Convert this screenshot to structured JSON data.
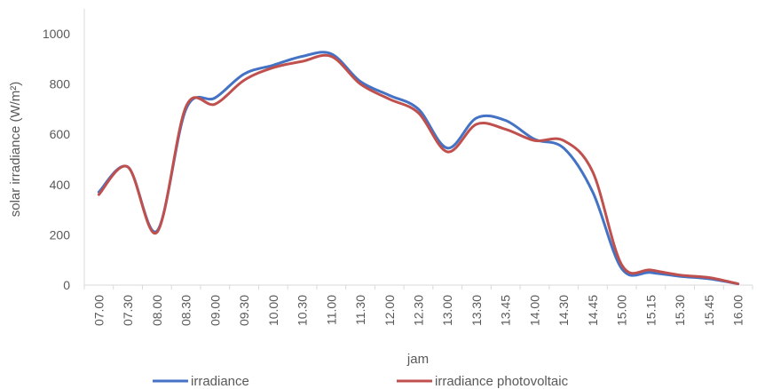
{
  "chart_data": {
    "type": "line",
    "title": "",
    "xlabel": "jam",
    "ylabel": "solar irradiance (W/m²)",
    "ylim": [
      0,
      1000
    ],
    "yticks": [
      0,
      200,
      400,
      600,
      800,
      1000
    ],
    "grid": false,
    "legend_position": "bottom",
    "categories": [
      "07.00",
      "07.30",
      "08.00",
      "08.30",
      "09.00",
      "09.30",
      "10.00",
      "10.30",
      "11.00",
      "11.30",
      "12.00",
      "12.30",
      "13.00",
      "13.30",
      "13.45",
      "14.00",
      "14.30",
      "14.45",
      "15.00",
      "15.15",
      "15.30",
      "15.45",
      "16.00"
    ],
    "series": [
      {
        "name": "irradiance",
        "color": "#4472C4",
        "values": [
          370,
          470,
          215,
          700,
          745,
          840,
          875,
          910,
          920,
          810,
          755,
          700,
          545,
          665,
          655,
          580,
          545,
          370,
          65,
          50,
          35,
          25,
          5
        ]
      },
      {
        "name": "irradiance photovoltaic",
        "color": "#C0504D",
        "values": [
          360,
          470,
          210,
          710,
          720,
          815,
          865,
          890,
          910,
          800,
          740,
          685,
          530,
          640,
          620,
          575,
          575,
          450,
          80,
          60,
          40,
          30,
          5
        ]
      }
    ]
  }
}
